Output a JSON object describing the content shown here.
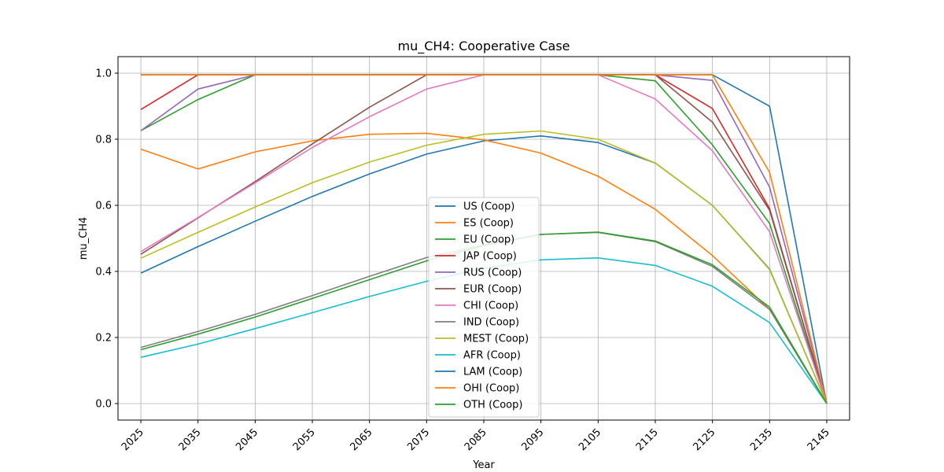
{
  "chart_data": {
    "type": "line",
    "title": "mu_CH4: Cooperative Case",
    "xlabel": "Year",
    "ylabel": "mu_CH4",
    "x": [
      2025,
      2035,
      2045,
      2055,
      2065,
      2075,
      2085,
      2095,
      2105,
      2115,
      2125,
      2135,
      2145
    ],
    "xlim": [
      2021,
      2149
    ],
    "ylim": [
      -0.05,
      1.05
    ],
    "yticks": [
      0.0,
      0.2,
      0.4,
      0.6,
      0.8,
      1.0
    ],
    "ytick_labels": [
      "0.0",
      "0.2",
      "0.4",
      "0.6",
      "0.8",
      "1.0"
    ],
    "grid": true,
    "legend_position": "center",
    "series": [
      {
        "name": "US (Coop)",
        "color": "#1f77b4",
        "values": [
          0.395,
          0.475,
          0.552,
          0.627,
          0.695,
          0.755,
          0.795,
          0.81,
          0.79,
          0.728,
          0.6,
          0.407,
          0.0
        ]
      },
      {
        "name": "ES (Coop)",
        "color": "#ff7f0e",
        "values": [
          0.77,
          0.71,
          0.762,
          0.795,
          0.815,
          0.818,
          0.798,
          0.758,
          0.688,
          0.588,
          0.448,
          0.285,
          0.0
        ]
      },
      {
        "name": "EU (Coop)",
        "color": "#2ca02c",
        "values": [
          0.826,
          0.92,
          0.995,
          0.995,
          0.995,
          0.995,
          0.995,
          0.995,
          0.995,
          0.977,
          0.783,
          0.545,
          0.0
        ]
      },
      {
        "name": "JAP (Coop)",
        "color": "#d62728",
        "values": [
          0.89,
          0.995,
          0.995,
          0.995,
          0.995,
          0.995,
          0.995,
          0.995,
          0.995,
          0.995,
          0.893,
          0.59,
          0.0
        ]
      },
      {
        "name": "RUS (Coop)",
        "color": "#9467bd",
        "values": [
          0.826,
          0.952,
          0.995,
          0.995,
          0.995,
          0.995,
          0.995,
          0.995,
          0.995,
          0.995,
          0.978,
          0.655,
          0.0
        ]
      },
      {
        "name": "EUR (Coop)",
        "color": "#8c564b",
        "values": [
          0.452,
          0.562,
          0.672,
          0.786,
          0.897,
          0.995,
          0.995,
          0.995,
          0.995,
          0.995,
          0.852,
          0.585,
          0.0
        ]
      },
      {
        "name": "CHI (Coop)",
        "color": "#e377c2",
        "values": [
          0.46,
          0.563,
          0.668,
          0.775,
          0.868,
          0.952,
          0.995,
          0.995,
          0.995,
          0.922,
          0.765,
          0.52,
          0.0
        ]
      },
      {
        "name": "IND (Coop)",
        "color": "#7f7f7f",
        "values": [
          0.17,
          0.218,
          0.27,
          0.327,
          0.385,
          0.442,
          0.48,
          0.512,
          0.518,
          0.49,
          0.415,
          0.285,
          0.0
        ]
      },
      {
        "name": "MEST (Coop)",
        "color": "#bcbd22",
        "values": [
          0.44,
          0.518,
          0.595,
          0.668,
          0.731,
          0.782,
          0.815,
          0.825,
          0.8,
          0.728,
          0.6,
          0.405,
          0.0
        ]
      },
      {
        "name": "AFR (Coop)",
        "color": "#17becf",
        "values": [
          0.14,
          0.18,
          0.227,
          0.275,
          0.324,
          0.37,
          0.41,
          0.435,
          0.441,
          0.418,
          0.355,
          0.245,
          0.0
        ]
      },
      {
        "name": "LAM (Coop)",
        "color": "#1f77b4",
        "values": [
          0.995,
          0.995,
          0.995,
          0.995,
          0.995,
          0.995,
          0.995,
          0.995,
          0.995,
          0.995,
          0.995,
          0.9,
          0.0
        ]
      },
      {
        "name": "OHI (Coop)",
        "color": "#ff7f0e",
        "values": [
          0.995,
          0.995,
          0.995,
          0.995,
          0.995,
          0.995,
          0.995,
          0.995,
          0.995,
          0.995,
          0.995,
          0.7,
          0.0
        ]
      },
      {
        "name": "OTH (Coop)",
        "color": "#2ca02c",
        "values": [
          0.163,
          0.21,
          0.262,
          0.318,
          0.375,
          0.432,
          0.478,
          0.512,
          0.519,
          0.492,
          0.42,
          0.292,
          0.0
        ]
      }
    ]
  }
}
